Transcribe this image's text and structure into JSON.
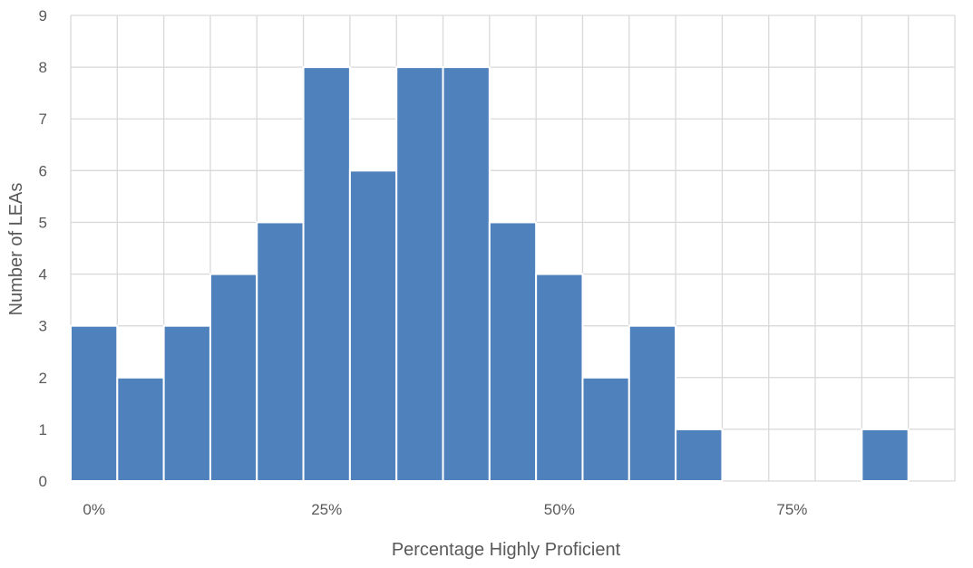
{
  "chart_data": {
    "type": "bar",
    "title": "",
    "xlabel": "Percentage Highly Proficient",
    "ylabel": "Number of LEAs",
    "bin_width": 5,
    "x_range": [
      -2.5,
      92.5
    ],
    "ylim": [
      0,
      9
    ],
    "y_ticks": [
      "0",
      "1",
      "2",
      "3",
      "4",
      "5",
      "6",
      "7",
      "8",
      "9"
    ],
    "x_ticks": [
      {
        "value": 0,
        "label": "0%"
      },
      {
        "value": 25,
        "label": "25%"
      },
      {
        "value": 50,
        "label": "50%"
      },
      {
        "value": 75,
        "label": "75%"
      }
    ],
    "bins": [
      {
        "center": 0,
        "count": 3
      },
      {
        "center": 5,
        "count": 2
      },
      {
        "center": 10,
        "count": 3
      },
      {
        "center": 15,
        "count": 4
      },
      {
        "center": 20,
        "count": 5
      },
      {
        "center": 25,
        "count": 8
      },
      {
        "center": 30,
        "count": 6
      },
      {
        "center": 35,
        "count": 8
      },
      {
        "center": 40,
        "count": 8
      },
      {
        "center": 45,
        "count": 5
      },
      {
        "center": 50,
        "count": 4
      },
      {
        "center": 55,
        "count": 2
      },
      {
        "center": 60,
        "count": 3
      },
      {
        "center": 65,
        "count": 1
      },
      {
        "center": 70,
        "count": 0
      },
      {
        "center": 75,
        "count": 0
      },
      {
        "center": 80,
        "count": 0
      },
      {
        "center": 85,
        "count": 1
      }
    ],
    "grid": true,
    "legend": "none",
    "colors": {
      "bar": "#4F81BD",
      "bar_edge": "#ffffff",
      "grid": "#D9D9D9",
      "text": "#595959"
    }
  }
}
